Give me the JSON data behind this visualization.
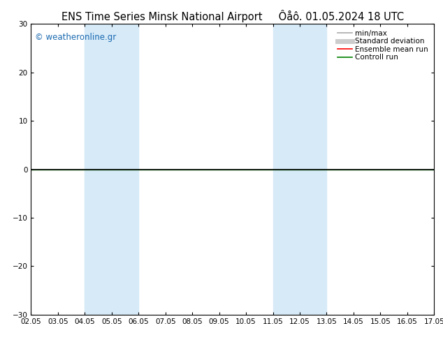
{
  "title_left": "ENS Time Series Minsk National Airport",
  "title_right": "Ôåô. 01.05.2024 18 UTC",
  "watermark": "© weatheronline.gr",
  "ylim": [
    -30,
    30
  ],
  "yticks": [
    -30,
    -20,
    -10,
    0,
    10,
    20,
    30
  ],
  "x_labels": [
    "02.05",
    "03.05",
    "04.05",
    "05.05",
    "06.05",
    "07.05",
    "08.05",
    "09.05",
    "10.05",
    "11.05",
    "12.05",
    "13.05",
    "14.05",
    "15.05",
    "16.05",
    "17.05"
  ],
  "x_values": [
    0,
    1,
    2,
    3,
    4,
    5,
    6,
    7,
    8,
    9,
    10,
    11,
    12,
    13,
    14,
    15
  ],
  "shade_regions": [
    {
      "xmin": 2,
      "xmax": 4,
      "color": "#d6eaf8"
    },
    {
      "xmin": 9,
      "xmax": 11,
      "color": "#d6eaf8"
    }
  ],
  "hline_y": 0,
  "hline_color": "#000000",
  "green_line_y": 0,
  "green_line_color": "#008000",
  "legend_entries": [
    {
      "label": "min/max",
      "color": "#aaaaaa",
      "lw": 1.2,
      "style": "-"
    },
    {
      "label": "Standard deviation",
      "color": "#cccccc",
      "lw": 5,
      "style": "-"
    },
    {
      "label": "Ensemble mean run",
      "color": "#ff0000",
      "lw": 1.2,
      "style": "-"
    },
    {
      "label": "Controll run",
      "color": "#008000",
      "lw": 1.2,
      "style": "-"
    }
  ],
  "bg_color": "#ffffff",
  "plot_bg_color": "#ffffff",
  "title_fontsize": 10.5,
  "watermark_color": "#1a6ab0",
  "watermark_fontsize": 8.5,
  "tick_fontsize": 7.5,
  "legend_fontsize": 7.5
}
